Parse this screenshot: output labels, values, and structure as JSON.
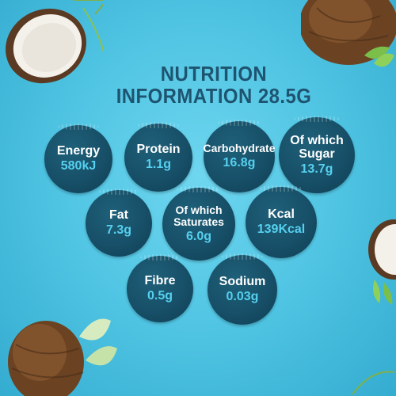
{
  "title": {
    "line1": "NUTRITION",
    "line2": "INFORMATION  28.5G"
  },
  "nutrients": {
    "energy": {
      "label": "Energy",
      "value": "580kJ"
    },
    "protein": {
      "label": "Protein",
      "value": "1.1g"
    },
    "carbohydrate": {
      "label": "Carbohydrate",
      "value": "16.8g"
    },
    "sugar": {
      "label_line1": "Of which",
      "label_line2": "Sugar",
      "value": "13.7g"
    },
    "fat": {
      "label": "Fat",
      "value": "7.3g"
    },
    "saturates": {
      "label_line1": "Of which",
      "label_line2": "Saturates",
      "value": "6.0g"
    },
    "kcal": {
      "label": "Kcal",
      "value": "139Kcal"
    },
    "fibre": {
      "label": "Fibre",
      "value": "0.5g"
    },
    "sodium": {
      "label": "Sodium",
      "value": "0.03g"
    }
  },
  "colors": {
    "background": "#52c6e4",
    "circle": "#164e66",
    "title": "#1e5470",
    "value": "#56d0ef"
  },
  "decorations": [
    "coconut-half-image",
    "whole-coconut-image",
    "leaf-image"
  ]
}
